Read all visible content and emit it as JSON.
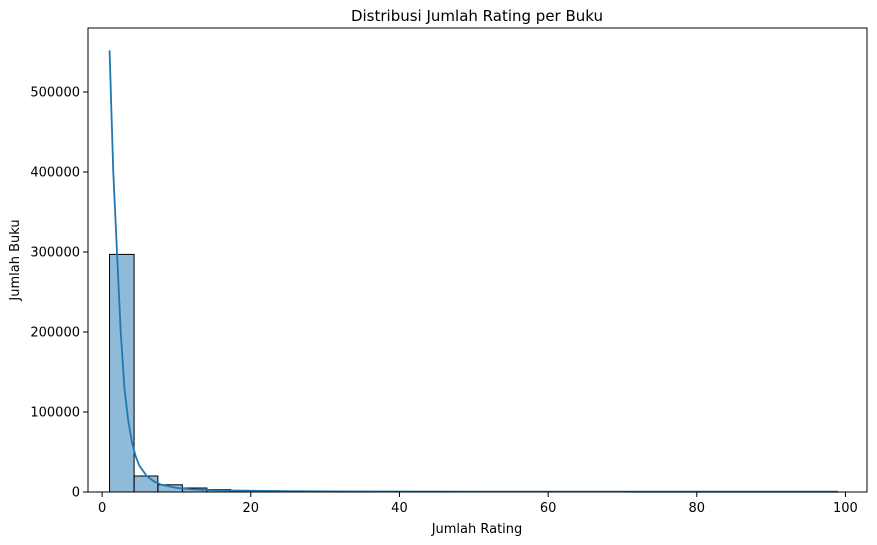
{
  "chart_data": {
    "type": "bar",
    "title": "Distribusi Jumlah Rating per Buku",
    "xlabel": "Jumlah Rating",
    "ylabel": "Jumlah Buku",
    "xlim": [
      -1.9,
      102.9
    ],
    "ylim": [
      0,
      580000
    ],
    "xticks": [
      0,
      20,
      40,
      60,
      80,
      100
    ],
    "yticks": [
      0,
      100000,
      200000,
      300000,
      400000,
      500000
    ],
    "grid": false,
    "bar_color": "#1f77b4",
    "bar_alpha": 0.5,
    "kde_color": "#1f77b4",
    "bins": [
      {
        "x0": 1.0,
        "x1": 4.3,
        "count": 297000
      },
      {
        "x0": 4.3,
        "x1": 7.5,
        "count": 20000
      },
      {
        "x0": 7.5,
        "x1": 10.8,
        "count": 9000
      },
      {
        "x0": 10.8,
        "x1": 14.1,
        "count": 5000
      },
      {
        "x0": 14.1,
        "x1": 17.3,
        "count": 3000
      },
      {
        "x0": 17.3,
        "x1": 20.6,
        "count": 2000
      },
      {
        "x0": 20.6,
        "x1": 23.9,
        "count": 1500
      },
      {
        "x0": 23.9,
        "x1": 27.1,
        "count": 1100
      },
      {
        "x0": 27.1,
        "x1": 30.4,
        "count": 850
      },
      {
        "x0": 30.4,
        "x1": 33.7,
        "count": 650
      },
      {
        "x0": 33.7,
        "x1": 36.9,
        "count": 500
      },
      {
        "x0": 36.9,
        "x1": 40.2,
        "count": 400
      },
      {
        "x0": 40.2,
        "x1": 43.5,
        "count": 320
      },
      {
        "x0": 43.5,
        "x1": 46.7,
        "count": 260
      },
      {
        "x0": 46.7,
        "x1": 50.0,
        "count": 210
      },
      {
        "x0": 50.0,
        "x1": 53.3,
        "count": 170
      },
      {
        "x0": 53.3,
        "x1": 56.5,
        "count": 140
      },
      {
        "x0": 56.5,
        "x1": 59.8,
        "count": 120
      },
      {
        "x0": 59.8,
        "x1": 63.1,
        "count": 100
      },
      {
        "x0": 63.1,
        "x1": 66.3,
        "count": 85
      },
      {
        "x0": 66.3,
        "x1": 69.6,
        "count": 75
      },
      {
        "x0": 69.6,
        "x1": 72.9,
        "count": 65
      },
      {
        "x0": 72.9,
        "x1": 76.1,
        "count": 55
      },
      {
        "x0": 76.1,
        "x1": 79.4,
        "count": 48
      },
      {
        "x0": 79.4,
        "x1": 82.7,
        "count": 42
      },
      {
        "x0": 82.7,
        "x1": 85.9,
        "count": 37
      },
      {
        "x0": 85.9,
        "x1": 89.2,
        "count": 33
      },
      {
        "x0": 89.2,
        "x1": 92.5,
        "count": 29
      },
      {
        "x0": 92.5,
        "x1": 95.7,
        "count": 26
      },
      {
        "x0": 95.7,
        "x1": 99.0,
        "count": 23
      }
    ],
    "kde": {
      "x": [
        1,
        1.5,
        2,
        2.5,
        3,
        3.5,
        4,
        4.5,
        5,
        6,
        7,
        8,
        10,
        12,
        15,
        20,
        25,
        30,
        40,
        50,
        60,
        70,
        80,
        90,
        99
      ],
      "y": [
        552000,
        400000,
        300000,
        200000,
        130000,
        90000,
        63000,
        45000,
        33000,
        20000,
        13000,
        9000,
        5200,
        3400,
        2200,
        1400,
        1000,
        800,
        600,
        500,
        450,
        420,
        400,
        380,
        370
      ]
    }
  }
}
